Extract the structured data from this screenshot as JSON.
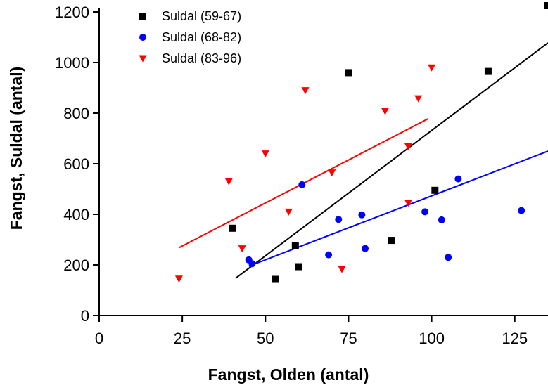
{
  "chart_data": {
    "type": "scatter",
    "title": "",
    "xlabel": "Fangst, Olden (antal)",
    "ylabel": "Fangst, Suldal (antal)",
    "xlim": [
      0,
      135
    ],
    "ylim": [
      0,
      1200
    ],
    "x_ticks": [
      0,
      25,
      50,
      75,
      100,
      125
    ],
    "y_ticks": [
      0,
      200,
      400,
      600,
      800,
      1000,
      1200
    ],
    "x_tick_labels": [
      "0",
      "25",
      "50",
      "75",
      "100",
      "125"
    ],
    "y_tick_labels": [
      "0",
      "200",
      "400",
      "600",
      "800",
      "1000",
      "1200"
    ],
    "grid": false,
    "legend_position": "top-left",
    "series": [
      {
        "name": "Suldal (59-67)",
        "color": "#000000",
        "marker": "square",
        "points": [
          [
            40,
            345
          ],
          [
            53,
            143
          ],
          [
            59,
            275
          ],
          [
            60,
            193
          ],
          [
            75,
            960
          ],
          [
            88,
            297
          ],
          [
            101,
            495
          ],
          [
            117,
            965
          ],
          [
            135,
            1225
          ]
        ],
        "trendline": [
          [
            41,
            147
          ],
          [
            135,
            1078
          ]
        ]
      },
      {
        "name": "Suldal (68-82)",
        "color": "#0000ff",
        "marker": "circle",
        "points": [
          [
            45,
            220
          ],
          [
            46,
            205
          ],
          [
            61,
            517
          ],
          [
            69,
            240
          ],
          [
            72,
            380
          ],
          [
            79,
            398
          ],
          [
            80,
            265
          ],
          [
            98,
            410
          ],
          [
            103,
            378
          ],
          [
            105,
            230
          ],
          [
            108,
            540
          ],
          [
            127,
            415
          ]
        ],
        "trendline": [
          [
            45,
            195
          ],
          [
            139,
            670
          ]
        ]
      },
      {
        "name": "Suldal (83-96)",
        "color": "#ff0000",
        "marker": "triangle-down",
        "points": [
          [
            24,
            145
          ],
          [
            39,
            530
          ],
          [
            43,
            265
          ],
          [
            50,
            640
          ],
          [
            57,
            410
          ],
          [
            62,
            890
          ],
          [
            70,
            565
          ],
          [
            73,
            183
          ],
          [
            86,
            808
          ],
          [
            93,
            668
          ],
          [
            93,
            445
          ],
          [
            96,
            858
          ],
          [
            100,
            980
          ]
        ],
        "trendline": [
          [
            24,
            268
          ],
          [
            99,
            778
          ]
        ]
      }
    ]
  }
}
